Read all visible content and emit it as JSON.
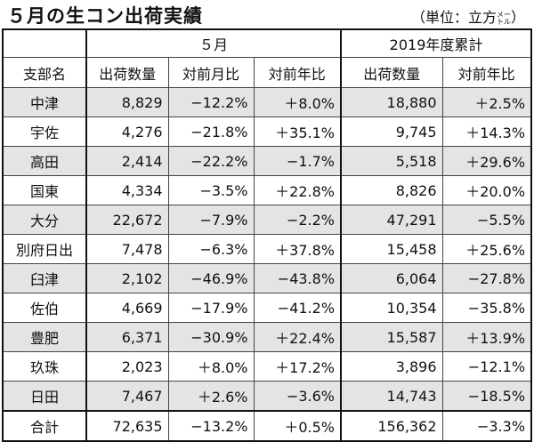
{
  "title": "５月の生コン出荷実績",
  "unit": {
    "prefix": "（単位：立方",
    "small_top": "メー",
    "small_bottom": "トル",
    "suffix": "）"
  },
  "header": {
    "group_month": "５月",
    "group_ytd": "2019年度累計",
    "col_branch": "支部名",
    "col_shipments": "出荷数量",
    "col_mom": "対前月比",
    "col_yoy": "対前年比",
    "col_ytd_shipments": "出荷数量",
    "col_ytd_yoy": "対前年比"
  },
  "rows": [
    {
      "name": "中津",
      "qty": "8,829",
      "mom": "−12.2%",
      "yoy": "＋8.0%",
      "ytd_qty": "18,880",
      "ytd_yoy": "＋2.5%"
    },
    {
      "name": "宇佐",
      "qty": "4,276",
      "mom": "−21.8%",
      "yoy": "＋35.1%",
      "ytd_qty": "9,745",
      "ytd_yoy": "＋14.3%"
    },
    {
      "name": "高田",
      "qty": "2,414",
      "mom": "−22.2%",
      "yoy": "−1.7%",
      "ytd_qty": "5,518",
      "ytd_yoy": "＋29.6%"
    },
    {
      "name": "国東",
      "qty": "4,334",
      "mom": "−3.5%",
      "yoy": "＋22.8%",
      "ytd_qty": "8,826",
      "ytd_yoy": "＋20.0%"
    },
    {
      "name": "大分",
      "qty": "22,672",
      "mom": "−7.9%",
      "yoy": "−2.2%",
      "ytd_qty": "47,291",
      "ytd_yoy": "−5.5%"
    },
    {
      "name": "別府日出",
      "qty": "7,478",
      "mom": "−6.3%",
      "yoy": "＋37.8%",
      "ytd_qty": "15,458",
      "ytd_yoy": "＋25.6%"
    },
    {
      "name": "臼津",
      "qty": "2,102",
      "mom": "−46.9%",
      "yoy": "−43.8%",
      "ytd_qty": "6,064",
      "ytd_yoy": "−27.8%"
    },
    {
      "name": "佐伯",
      "qty": "4,669",
      "mom": "−17.9%",
      "yoy": "−41.2%",
      "ytd_qty": "10,354",
      "ytd_yoy": "−35.8%"
    },
    {
      "name": "豊肥",
      "qty": "6,371",
      "mom": "−30.9%",
      "yoy": "＋22.4%",
      "ytd_qty": "15,587",
      "ytd_yoy": "＋13.9%"
    },
    {
      "name": "玖珠",
      "qty": "2,023",
      "mom": "＋8.0%",
      "yoy": "＋17.2%",
      "ytd_qty": "3,896",
      "ytd_yoy": "−12.1%"
    },
    {
      "name": "日田",
      "qty": "7,467",
      "mom": "＋2.6%",
      "yoy": "−3.6%",
      "ytd_qty": "14,743",
      "ytd_yoy": "−18.5%"
    }
  ],
  "total": {
    "name": "合計",
    "qty": "72,635",
    "mom": "−13.2%",
    "yoy": "＋0.5%",
    "ytd_qty": "156,362",
    "ytd_yoy": "−3.3%"
  },
  "colors": {
    "shade": "#e4e4e4",
    "border": "#444444"
  }
}
